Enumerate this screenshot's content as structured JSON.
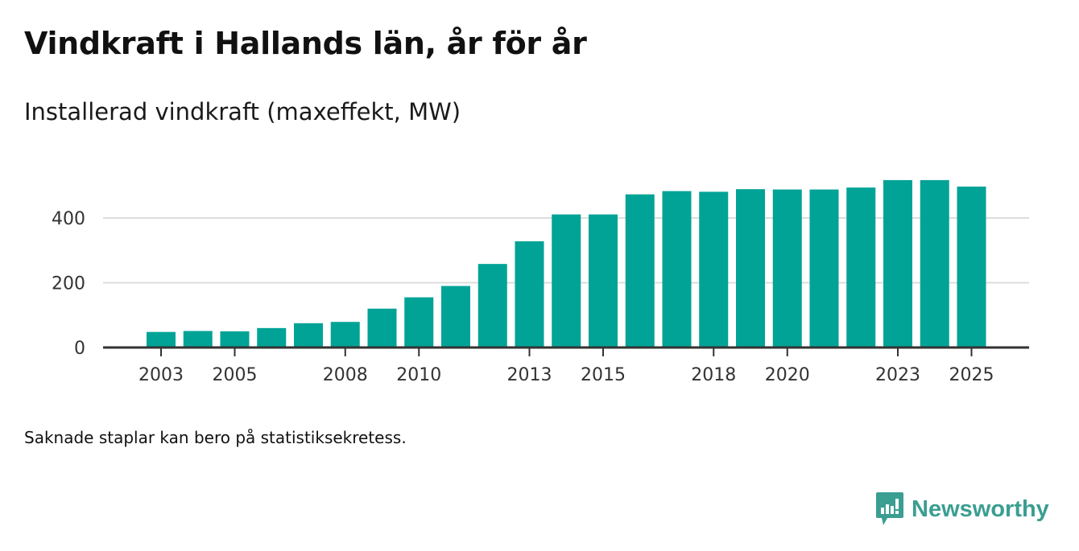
{
  "header": {
    "title": "Vindkraft i Hallands län, år för år",
    "subtitle": "Installerad vindkraft (maxeffekt, MW)"
  },
  "footer": {
    "note": "Saknade staplar kan bero på statistiksekretess.",
    "brand": "Newsworthy",
    "brand_icon": "bar-chart-speech-bubble-icon"
  },
  "colors": {
    "bar": "#00a396",
    "brand": "#3a9e91",
    "grid": "#dddddd",
    "axis": "#333333"
  },
  "chart_data": {
    "type": "bar",
    "title": "Vindkraft i Hallands län, år för år",
    "subtitle": "Installerad vindkraft (maxeffekt, MW)",
    "xlabel": "",
    "ylabel": "MW",
    "categories": [
      "2003",
      "2004",
      "2005",
      "2006",
      "2007",
      "2008",
      "2009",
      "2010",
      "2011",
      "2012",
      "2013",
      "2014",
      "2015",
      "2016",
      "2017",
      "2018",
      "2019",
      "2020",
      "2021",
      "2022",
      "2023",
      "2024",
      "2025"
    ],
    "values": [
      48,
      51,
      50,
      60,
      75,
      79,
      120,
      155,
      190,
      258,
      328,
      411,
      411,
      473,
      483,
      481,
      489,
      488,
      488,
      494,
      517,
      517,
      497
    ],
    "x_tick_labels": [
      "2003",
      "2005",
      "2008",
      "2010",
      "2013",
      "2015",
      "2018",
      "2020",
      "2023",
      "2025"
    ],
    "y_ticks": [
      0,
      200,
      400
    ],
    "ylim": [
      0,
      560
    ],
    "grid": true,
    "legend": "none"
  }
}
